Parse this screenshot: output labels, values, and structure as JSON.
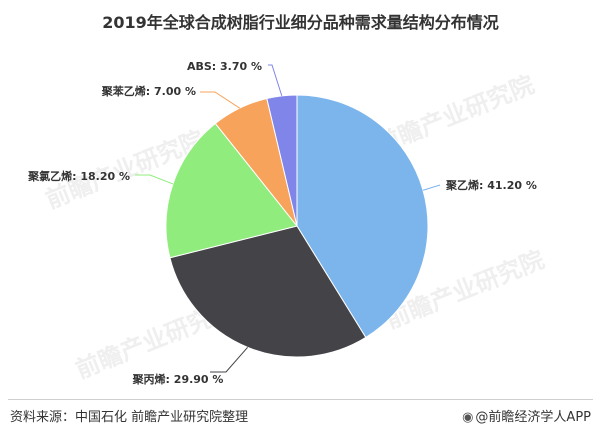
{
  "title": "2019年全球合成树脂行业细分品种需求量结构分布情况",
  "watermark": "前瞻产业研究院",
  "source": "资料来源：中国石化 前瞻产业研究院整理",
  "brand": {
    "icon": "eye-logo-icon",
    "text": "@前瞻经济学人APP"
  },
  "chart_data": {
    "type": "pie",
    "title": "2019年全球合成树脂行业细分品种需求量结构分布情况",
    "slices": [
      {
        "label": "聚乙烯: 41.20 %",
        "value": 41.2,
        "color": "#7cb5ec"
      },
      {
        "label": "聚丙烯: 29.90 %",
        "value": 29.9,
        "color": "#434348"
      },
      {
        "label": "聚氯乙烯: 18.20 %",
        "value": 18.2,
        "color": "#90ed7d"
      },
      {
        "label": "聚苯乙烯: 7.00 %",
        "value": 7.0,
        "color": "#f7a35c"
      },
      {
        "label": "ABS: 3.70 %",
        "value": 3.7,
        "color": "#8085e9"
      }
    ]
  }
}
